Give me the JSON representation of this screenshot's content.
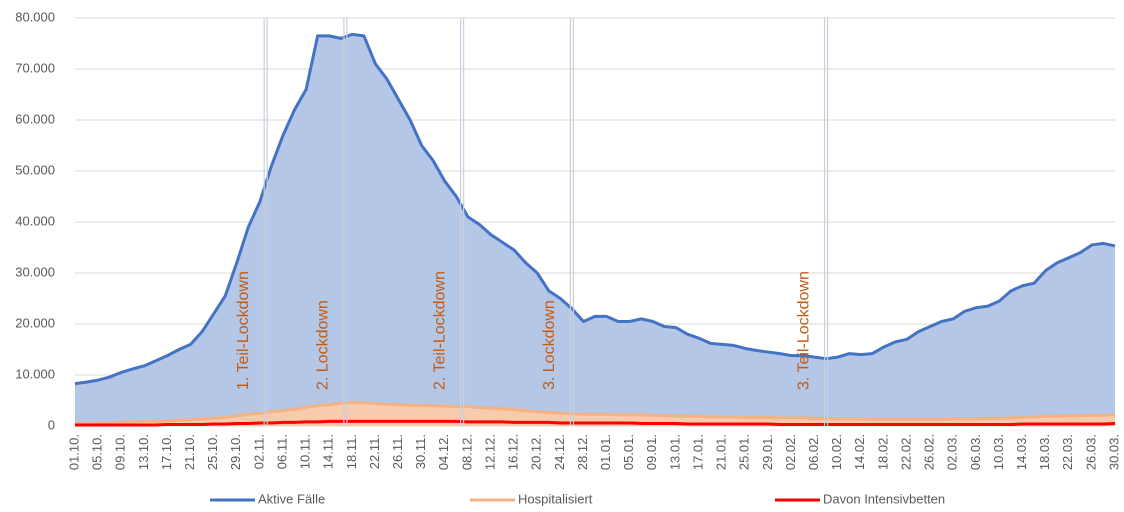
{
  "chart_data": {
    "type": "area",
    "categories": [
      "01.10.",
      null,
      "05.10.",
      null,
      "09.10.",
      null,
      "13.10.",
      null,
      "17.10.",
      null,
      "21.10.",
      null,
      "25.10.",
      null,
      "29.10.",
      null,
      "02.11.",
      null,
      "06.11.",
      null,
      "10.11.",
      null,
      "14.11.",
      null,
      "18.11.",
      null,
      "22.11.",
      null,
      "26.11.",
      null,
      "30.11.",
      null,
      "04.12.",
      null,
      "08.12.",
      null,
      "12.12.",
      null,
      "16.12.",
      null,
      "20.12.",
      null,
      "24.12.",
      null,
      "28.12.",
      null,
      "01.01.",
      null,
      "05.01.",
      null,
      "09.01.",
      null,
      "13.01.",
      null,
      "17.01.",
      null,
      "21.01.",
      null,
      "25.01.",
      null,
      "29.01.",
      null,
      "02.02.",
      null,
      "06.02.",
      null,
      "10.02.",
      null,
      "14.02.",
      null,
      "18.02.",
      null,
      "22.02.",
      null,
      "26.02.",
      null,
      "02.03.",
      null,
      "06.03.",
      null,
      "10.03.",
      null,
      "14.03.",
      null,
      "18.03.",
      null,
      "22.03.",
      null,
      "26.03.",
      null,
      "30.03."
    ],
    "series": [
      {
        "name": "Aktive Fälle",
        "color": "#4472c4",
        "fill": "#b4c7e7",
        "values": [
          8300,
          8600,
          9000,
          9600,
          10500,
          11200,
          11800,
          12800,
          13800,
          15000,
          16000,
          18500,
          22000,
          25500,
          32000,
          39000,
          44000,
          51000,
          57000,
          62000,
          66000,
          76500,
          76500,
          76000,
          76800,
          76500,
          71000,
          68000,
          64000,
          60000,
          55000,
          52000,
          48000,
          45000,
          41000,
          39500,
          37500,
          36000,
          34500,
          32000,
          30000,
          26500,
          25000,
          23000,
          20500,
          21500,
          21500,
          20500,
          20500,
          21000,
          20500,
          19500,
          19300,
          18000,
          17200,
          16200,
          16000,
          15800,
          15200,
          14800,
          14500,
          14200,
          13800,
          13800,
          13500,
          13200,
          13500,
          14200,
          14000,
          14200,
          15500,
          16500,
          17000,
          18500,
          19500,
          20500,
          21000,
          22500,
          23200,
          23500,
          24500,
          26500,
          27500,
          28000,
          30500,
          32000,
          33000,
          34000,
          35500,
          35800,
          35300
        ]
      },
      {
        "name": "Hospitalisiert",
        "color": "#f4b183",
        "fill": "#f8cbad",
        "values": [
          500,
          500,
          600,
          600,
          700,
          800,
          900,
          900,
          1000,
          1100,
          1200,
          1400,
          1500,
          1700,
          2000,
          2300,
          2500,
          2800,
          3000,
          3300,
          3700,
          4000,
          4200,
          4500,
          4600,
          4500,
          4400,
          4300,
          4200,
          4100,
          4000,
          4000,
          3900,
          3800,
          3800,
          3600,
          3500,
          3400,
          3200,
          3000,
          2800,
          2700,
          2500,
          2400,
          2300,
          2300,
          2300,
          2200,
          2200,
          2200,
          2100,
          2000,
          2000,
          1900,
          1900,
          1800,
          1800,
          1800,
          1700,
          1700,
          1700,
          1600,
          1600,
          1600,
          1500,
          1500,
          1400,
          1400,
          1400,
          1300,
          1300,
          1300,
          1300,
          1300,
          1300,
          1300,
          1400,
          1400,
          1400,
          1500,
          1500,
          1600,
          1700,
          1800,
          1900,
          1900,
          2000,
          2000,
          2100,
          2100,
          2200
        ]
      },
      {
        "name": "Davon Intensivbetten",
        "color": "#ff0000",
        "values": [
          200,
          200,
          200,
          200,
          200,
          200,
          200,
          200,
          300,
          300,
          300,
          300,
          400,
          400,
          500,
          500,
          600,
          600,
          700,
          700,
          800,
          800,
          900,
          900,
          900,
          900,
          900,
          900,
          900,
          900,
          900,
          900,
          900,
          900,
          800,
          800,
          800,
          800,
          700,
          700,
          700,
          700,
          600,
          600,
          600,
          600,
          600,
          600,
          600,
          500,
          500,
          500,
          500,
          400,
          400,
          400,
          400,
          400,
          400,
          400,
          400,
          300,
          300,
          300,
          300,
          300,
          300,
          300,
          300,
          300,
          300,
          300,
          300,
          300,
          300,
          300,
          300,
          300,
          300,
          300,
          300,
          300,
          400,
          400,
          400,
          400,
          400,
          400,
          400,
          400,
          500
        ]
      }
    ],
    "ylim": [
      0,
      80000
    ],
    "yticks": [
      0,
      {
        "value": 10000,
        "label": "10.000"
      },
      {
        "value": 20000,
        "label": "20.000"
      },
      {
        "value": 30000,
        "label": "30.000"
      },
      {
        "value": 40000,
        "label": "40.000"
      },
      {
        "value": 50000,
        "label": "50.000"
      },
      {
        "value": 60000,
        "label": "60.000"
      },
      {
        "value": 70000,
        "label": "70.000"
      },
      {
        "value": 80000,
        "label": "80.000"
      }
    ],
    "grid": true,
    "legend": "bottom",
    "annotations": [
      {
        "text": "1. Teil-Lockdown",
        "x": 16.5
      },
      {
        "text": "2. Lockdown",
        "x": 23.4
      },
      {
        "text": "2. Teil-Lockdown",
        "x": 33.5
      },
      {
        "text": "3. Lockdown",
        "x": 43
      },
      {
        "text": "3. Teil-Lockdown",
        "x": 65
      }
    ]
  }
}
